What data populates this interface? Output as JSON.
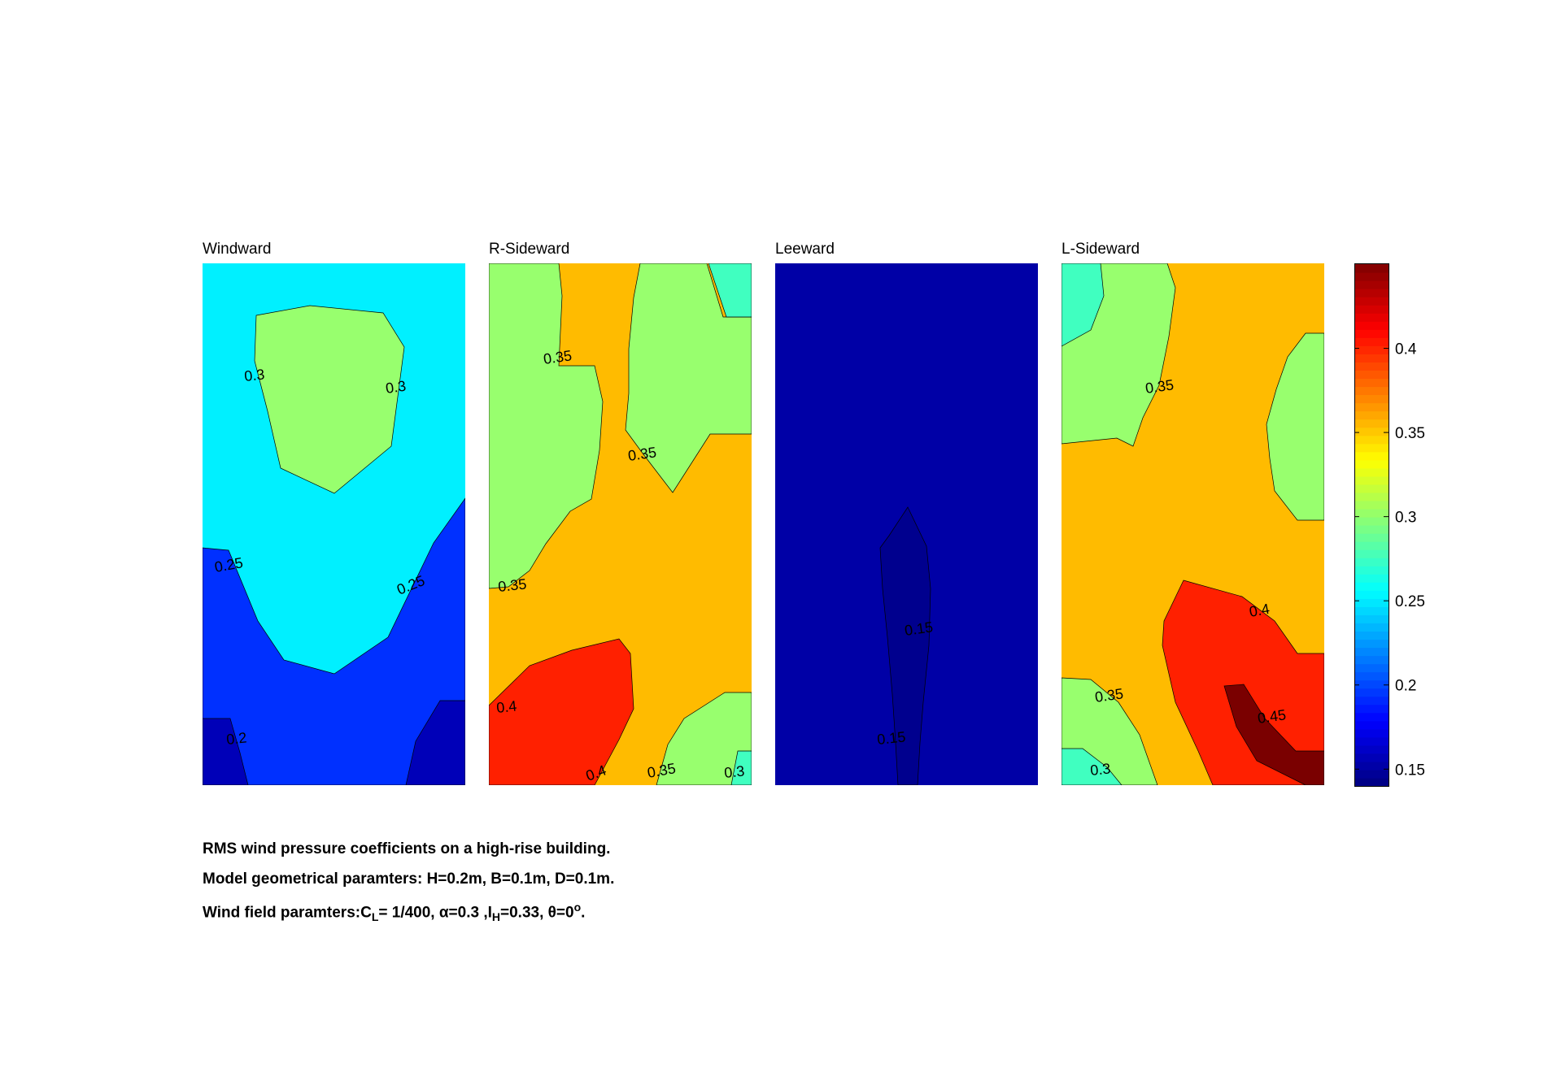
{
  "chart_data": {
    "type": "contourf",
    "colormap": "jet",
    "panels": [
      {
        "title": "Windward",
        "contour_levels": [
          0.2,
          0.25,
          0.3
        ],
        "contour_labels": [
          "0.3",
          "0.3",
          "0.25",
          "0.25",
          "0.2"
        ]
      },
      {
        "title": "R-Sideward",
        "contour_levels": [
          0.3,
          0.35,
          0.4
        ],
        "contour_labels": [
          "0.35",
          "0.35",
          "0.35",
          "0.4",
          "0.4",
          "0.35",
          "0.3"
        ]
      },
      {
        "title": "Leeward",
        "contour_levels": [
          0.15
        ],
        "contour_labels": [
          "0.15",
          "0.15"
        ]
      },
      {
        "title": "L-Sideward",
        "contour_levels": [
          0.3,
          0.35,
          0.4,
          0.45
        ],
        "contour_labels": [
          "0.35",
          "0.4",
          "0.35",
          "0.45",
          "0.3"
        ]
      }
    ],
    "colorbar": {
      "range": [
        0.14,
        0.45
      ],
      "ticks": [
        0.15,
        0.2,
        0.25,
        0.3,
        0.35,
        0.4
      ],
      "tick_labels": [
        "0.15",
        "0.2",
        "0.25",
        "0.3",
        "0.35",
        "0.4"
      ]
    }
  },
  "caption": {
    "line1": "RMS wind pressure coefficients on a high-rise building.",
    "line2": "Model geometrical paramters: H=0.2m, B=0.1m, D=0.1m.",
    "line3": {
      "prefix": "Wind field paramters:C",
      "sub_l": "L",
      "part2": "= 1/400, α=0.3 ,I",
      "sub_h": "H",
      "part3": "=0.33, θ=0",
      "sup_o": "o",
      "suffix": "."
    }
  },
  "colors": {
    "background": "#ffffff",
    "dark_blue": "#0000b8",
    "blue": "#0030ff",
    "deep_blue": "#0000a6",
    "navy": "#00008e",
    "cyan": "#00f0ff",
    "aqua_green": "#40ffc0",
    "green": "#98ff6e",
    "orange": "#ffbb00",
    "red": "#ff2000",
    "dark_red": "#7a0000"
  }
}
